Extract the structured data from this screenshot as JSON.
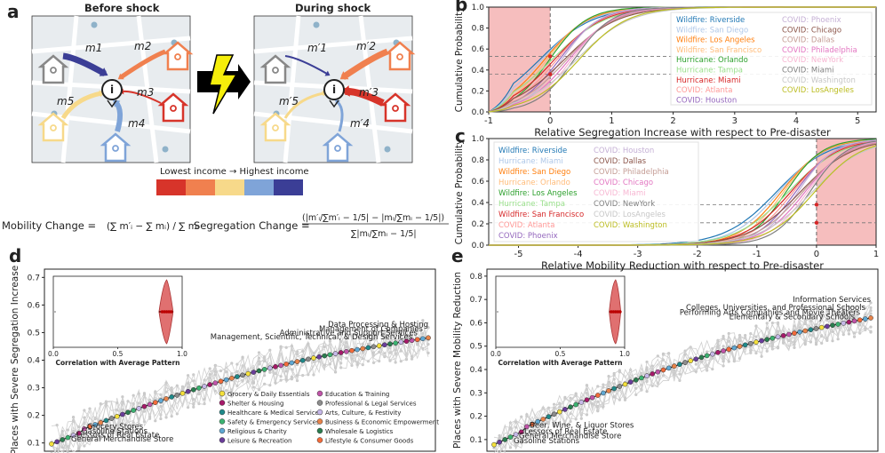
{
  "panel_a": {
    "letter": "a",
    "before_title": "Before shock",
    "during_title": "During shock",
    "before_flows": [
      "m1",
      "m2",
      "m3",
      "m4",
      "m5"
    ],
    "during_flows": [
      "m′1",
      "m′2",
      "m′3",
      "m′4",
      "m′5"
    ],
    "income_label": "Lowest income → Highest income",
    "income_colors": [
      "#d7342a",
      "#f0804f",
      "#f7d98a",
      "#7fa4d8",
      "#3b3e96"
    ],
    "mobility_change_label": "Mobility Change =",
    "mobility_change_formula": "(∑ m′ᵢ − ∑ mᵢ) / ∑ mᵢ",
    "segregation_change_label": "Segregation Change =",
    "segregation_change_formula": "(|m′ᵢ/∑m′ᵢ − 1/5| − |mᵢ/∑mᵢ − 1/5|) / ∑|mᵢ/∑mᵢ − 1/5|"
  },
  "chart_data": [
    {
      "panel": "b",
      "type": "line",
      "xlabel": "Relative Segregation Increase with respect to Pre-disaster",
      "ylabel": "Cumulative Probability",
      "xlim": [
        -1,
        5.3
      ],
      "ylim": [
        0,
        1
      ],
      "xticks": [
        "-1",
        "0",
        "1",
        "2",
        "3",
        "4",
        "5"
      ],
      "yticks": [
        "0.0",
        "0.2",
        "0.4",
        "0.6",
        "0.8",
        "1.0"
      ],
      "shaded_region": [
        -1,
        0
      ],
      "reference_lines_y": [
        0.36,
        0.53
      ],
      "legend_position": "right",
      "series": [
        {
          "name": "Wildfire: Riverside",
          "color": "#1f77b4"
        },
        {
          "name": "Wildfire: San Diego",
          "color": "#aec7e8"
        },
        {
          "name": "Wildfire: Los Angeles",
          "color": "#ff7f0e"
        },
        {
          "name": "Wildfire: San Francisco",
          "color": "#ffbb78"
        },
        {
          "name": "Hurricane: Orlando",
          "color": "#2ca02c"
        },
        {
          "name": "Hurricane: Tampa",
          "color": "#98df8a"
        },
        {
          "name": "Hurricane: Miami",
          "color": "#d62728"
        },
        {
          "name": "COVID: Atlanta",
          "color": "#ff9896"
        },
        {
          "name": "COVID: Houston",
          "color": "#9467bd"
        },
        {
          "name": "COVID: Phoenix",
          "color": "#c5b0d5"
        },
        {
          "name": "COVID: Chicago",
          "color": "#8c564b"
        },
        {
          "name": "COVID: Dallas",
          "color": "#c49c94"
        },
        {
          "name": "COVID: Philadelphia",
          "color": "#e377c2"
        },
        {
          "name": "COVID: NewYork",
          "color": "#f7b6d2"
        },
        {
          "name": "COVID: Miami",
          "color": "#7f7f7f"
        },
        {
          "name": "COVID: Washington",
          "color": "#c7c7c7"
        },
        {
          "name": "COVID: LosAngeles",
          "color": "#bcbd22"
        }
      ]
    },
    {
      "panel": "c",
      "type": "line",
      "xlabel": "Relative Mobility Reduction with respect to Pre-disaster",
      "ylabel": "Cumulative Probability",
      "xlim": [
        -5.5,
        1
      ],
      "ylim": [
        0,
        1
      ],
      "xticks": [
        "-5",
        "-4",
        "-3",
        "-2",
        "-1",
        "0",
        "1"
      ],
      "yticks": [
        "0.0",
        "0.2",
        "0.4",
        "0.6",
        "0.8",
        "1.0"
      ],
      "shaded_region": [
        0,
        1
      ],
      "reference_lines_y": [
        0.21,
        0.38
      ],
      "legend_position": "left",
      "series": [
        {
          "name": "Wildfire: Riverside",
          "color": "#1f77b4"
        },
        {
          "name": "Hurricane: Miami",
          "color": "#aec7e8"
        },
        {
          "name": "Wildfire: San Diego",
          "color": "#ff7f0e"
        },
        {
          "name": "Hurricane: Orlando",
          "color": "#ffbb78"
        },
        {
          "name": "Wildfire: Los Angeles",
          "color": "#2ca02c"
        },
        {
          "name": "Hurricane: Tampa",
          "color": "#98df8a"
        },
        {
          "name": "Wildfire: San Francisco",
          "color": "#d62728"
        },
        {
          "name": "COVID: Atlanta",
          "color": "#ff9896"
        },
        {
          "name": "COVID: Phoenix",
          "color": "#9467bd"
        },
        {
          "name": "COVID: Houston",
          "color": "#c5b0d5"
        },
        {
          "name": "COVID: Dallas",
          "color": "#8c564b"
        },
        {
          "name": "COVID: Philadelphia",
          "color": "#c49c94"
        },
        {
          "name": "COVID: Chicago",
          "color": "#e377c2"
        },
        {
          "name": "COVID: Miami",
          "color": "#f7b6d2"
        },
        {
          "name": "COVID: NewYork",
          "color": "#7f7f7f"
        },
        {
          "name": "COVID: LosAngeles",
          "color": "#c7c7c7"
        },
        {
          "name": "COVID: Washington",
          "color": "#bcbd22"
        }
      ]
    },
    {
      "panel": "d",
      "type": "scatter",
      "ylabel": "Places with Severe Segregation Increase",
      "ylim": [
        0.07,
        0.73
      ],
      "yticks": [
        "0.1",
        "0.2",
        "0.3",
        "0.4",
        "0.5",
        "0.6",
        "0.7"
      ],
      "start": 0.105,
      "end": 0.53,
      "n_points": 70,
      "annotations": [
        {
          "text": "Data Processing & Hosting",
          "value": 0.52
        },
        {
          "text": "Management of Companies",
          "value": 0.505
        },
        {
          "text": "Administrative and Support Services",
          "value": 0.49
        },
        {
          "text": "Management, Scientific, Technical, & Design Services",
          "value": 0.475
        },
        {
          "text": "Grocery Stores",
          "value": 0.15
        },
        {
          "text": "Gasoline Stations",
          "value": 0.135
        },
        {
          "text": "Lessors of Real Estate",
          "value": 0.12
        },
        {
          "text": "General Merchandise Store",
          "value": 0.105
        }
      ],
      "inset": {
        "xlabel": "Correlation with Average Pattern",
        "xticks": [
          "0.0",
          "0.5",
          "1.0"
        ],
        "median": 0.88,
        "spread": [
          0.82,
          0.93
        ]
      },
      "legend": [
        {
          "label": "Grocery & Daily Essentials",
          "color": "#f4e03b"
        },
        {
          "label": "Shelter & Housing",
          "color": "#a6196a"
        },
        {
          "label": "Healthcare & Medical Services",
          "color": "#1f8a8a"
        },
        {
          "label": "Safety & Emergency Services",
          "color": "#3cb371"
        },
        {
          "label": "Religious & Charity",
          "color": "#5fa8d3"
        },
        {
          "label": "Leisure & Recreation",
          "color": "#6a3d9a"
        },
        {
          "label": "Education & Training",
          "color": "#c054a8"
        },
        {
          "label": "Professional & Legal Services",
          "color": "#8c8c8c"
        },
        {
          "label": "Arts, Culture, & Festivity",
          "color": "#c6b8e8"
        },
        {
          "label": "Business & Economic Empowerment",
          "color": "#e8834a"
        },
        {
          "label": "Wholesale & Logistics",
          "color": "#2a7d4f"
        },
        {
          "label": "Lifestyle & Consumer Goods",
          "color": "#f26b3a"
        }
      ]
    },
    {
      "panel": "e",
      "type": "scatter",
      "ylabel": "Places with Severe Mobility Reduction",
      "ylim": [
        0.05,
        0.83
      ],
      "yticks": [
        "0.1",
        "0.2",
        "0.3",
        "0.4",
        "0.5",
        "0.6",
        "0.7",
        "0.8"
      ],
      "start": 0.09,
      "end": 0.69,
      "n_points": 70,
      "annotations": [
        {
          "text": "Information Services",
          "value": 0.69
        },
        {
          "text": "Colleges, Universities, and Professional Schools",
          "value": 0.655
        },
        {
          "text": "Performing Arts Companies and Movie Theaters",
          "value": 0.635
        },
        {
          "text": "Elementary & Secondary Schools",
          "value": 0.615
        },
        {
          "text": "Beer, Wine, & Liquor Stores",
          "value": 0.15
        },
        {
          "text": "Lessors of Real Estate",
          "value": 0.125
        },
        {
          "text": "General Merchandise Store",
          "value": 0.105
        },
        {
          "text": "Gasoline Stations",
          "value": 0.085
        }
      ],
      "inset": {
        "xlabel": "Correlation with Average Pattern",
        "xticks": [
          "0.0",
          "0.5",
          "1.0"
        ],
        "median": 0.93,
        "spread": [
          0.88,
          0.97
        ]
      }
    }
  ]
}
